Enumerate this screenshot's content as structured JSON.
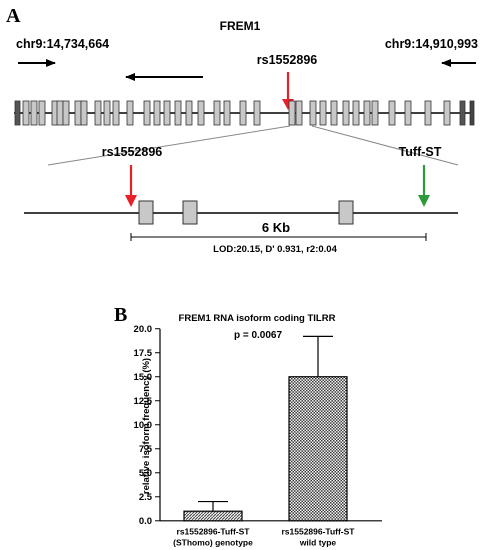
{
  "panel_a": {
    "label": "A",
    "gene": "FREM1",
    "coord_left": "chr9:14,734,664",
    "coord_right": "chr9:14,910,993",
    "snp_top": "rs1552896",
    "snp_zoom": "rs1552896",
    "tuff": "Tuff-ST",
    "scale": "6 Kb",
    "ld": "LOD:20.15, D' 0.931, r2:0.04",
    "colors": {
      "red_arrow": "#e8202a",
      "green_arrow": "#2e9a3a",
      "exon": "#c8c8c8"
    }
  },
  "panel_b": {
    "label": "B"
  },
  "chart_data": {
    "type": "bar",
    "title": "FREM1 RNA isoform coding TILRR",
    "subtitle": "p = 0.0067",
    "ylabel": "relative isoform frequency (%)",
    "xlabel": "",
    "ylim": [
      0,
      20
    ],
    "yticks": [
      "0.0",
      "2.5",
      "5.0",
      "7.5",
      "10.0",
      "12.5",
      "15.0",
      "17.5",
      "20.0"
    ],
    "categories": [
      [
        "rs1552896-Tuff-ST",
        "(SThomo) genotype"
      ],
      [
        "rs1552896-Tuff-ST",
        "wild type"
      ]
    ],
    "values": [
      1.0,
      15.0
    ],
    "errors": [
      1.0,
      4.2
    ],
    "grid": false
  }
}
